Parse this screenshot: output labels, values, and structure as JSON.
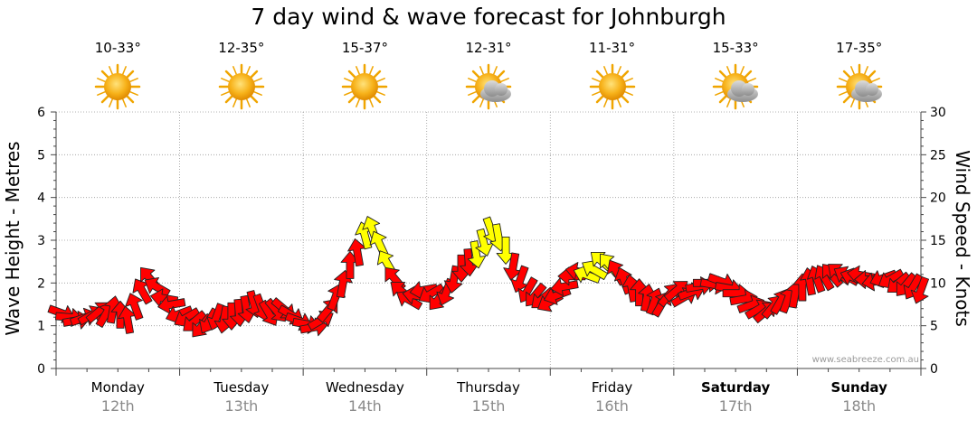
{
  "title": "7 day wind & wave forecast for Johnburgh",
  "days": [
    {
      "name": "Monday",
      "date": "12th",
      "temp": "10-33°",
      "weather_icon": "sun-icon",
      "bold": false
    },
    {
      "name": "Tuesday",
      "date": "13th",
      "temp": "12-35°",
      "weather_icon": "sun-icon",
      "bold": false
    },
    {
      "name": "Wednesday",
      "date": "14th",
      "temp": "15-37°",
      "weather_icon": "sun-icon",
      "bold": false
    },
    {
      "name": "Thursday",
      "date": "15th",
      "temp": "12-31°",
      "weather_icon": "sun-cloud-icon",
      "bold": false
    },
    {
      "name": "Friday",
      "date": "16th",
      "temp": "11-31°",
      "weather_icon": "sun-icon",
      "bold": false
    },
    {
      "name": "Saturday",
      "date": "17th",
      "temp": "15-33°",
      "weather_icon": "sun-cloud-icon",
      "bold": true
    },
    {
      "name": "Sunday",
      "date": "18th",
      "temp": "17-35°",
      "weather_icon": "sun-cloud-icon",
      "bold": true
    }
  ],
  "credit": "www.seabreeze.com.au",
  "colors": {
    "strong_wind": "#ff0000",
    "gust_wind": "#ffff00",
    "outline": "#222222",
    "grid": "#9a9a9a"
  },
  "chart_data": {
    "type": "scatter",
    "left_axis": {
      "label": "Wave Height - Metres",
      "ylim": [
        0,
        6
      ],
      "ticks": [
        "0",
        "1",
        "2",
        "3",
        "4",
        "5",
        "6"
      ]
    },
    "right_axis": {
      "label": "Wind Speed - Knots",
      "ylim": [
        0,
        30
      ],
      "ticks": [
        "0",
        "5",
        "10",
        "15",
        "20",
        "25",
        "30"
      ]
    },
    "x_categories": [
      "Monday 12th",
      "Tuesday 13th",
      "Wednesday 14th",
      "Thursday 15th",
      "Friday 16th",
      "Saturday 17th",
      "Sunday 18th"
    ],
    "grid": true,
    "series": [
      {
        "x": [
          0.0,
          0.06,
          0.12,
          0.18,
          0.24,
          0.3,
          0.36,
          0.42,
          0.48,
          0.54,
          0.6,
          0.66,
          0.72,
          0.78,
          0.84,
          0.9,
          0.96,
          1.02,
          1.08,
          1.14,
          1.2,
          1.26,
          1.32,
          1.38,
          1.44,
          1.5,
          1.56,
          1.62,
          1.68,
          1.74,
          1.8,
          1.86,
          1.92,
          1.98,
          2.04,
          2.1,
          2.16,
          2.22,
          2.28,
          2.34,
          2.4,
          2.46,
          2.52,
          2.58,
          2.64,
          2.7,
          2.76,
          2.82,
          2.88,
          2.94,
          3.0,
          3.06,
          3.12,
          3.18,
          3.24,
          3.3,
          3.36,
          3.42,
          3.48,
          3.54,
          3.6,
          3.66,
          3.72,
          3.78,
          3.84,
          3.9,
          3.96,
          4.02,
          4.08,
          4.14,
          4.2,
          4.26,
          4.32,
          4.38,
          4.44,
          4.5,
          4.56,
          4.62,
          4.68,
          4.74,
          4.8,
          4.86,
          4.92,
          4.98,
          5.04,
          5.1,
          5.16,
          5.22,
          5.28,
          5.34,
          5.4,
          5.46,
          5.52,
          5.58,
          5.64,
          5.7,
          5.76,
          5.82,
          5.88,
          5.94,
          6.0,
          6.06,
          6.12,
          6.18,
          6.24,
          6.3,
          6.36,
          6.42,
          6.48,
          6.54,
          6.6,
          6.66,
          6.72,
          6.78,
          6.84,
          6.9,
          6.96
        ],
        "wind_knots": [
          6.5,
          6.0,
          5.6,
          5.9,
          6.2,
          6.6,
          6.3,
          6.8,
          6.2,
          5.6,
          7.2,
          9.0,
          10.5,
          9.5,
          8.2,
          7.5,
          6.4,
          6.0,
          5.5,
          5.0,
          5.6,
          6.1,
          5.8,
          6.2,
          6.6,
          7.0,
          7.6,
          7.2,
          6.5,
          6.8,
          7.0,
          6.3,
          5.6,
          5.2,
          4.8,
          5.6,
          6.8,
          8.3,
          9.8,
          12.0,
          13.5,
          15.5,
          16.2,
          14.5,
          12.3,
          10.5,
          9.0,
          8.0,
          8.5,
          9.2,
          8.8,
          8.2,
          9.0,
          10.5,
          11.8,
          12.5,
          13.4,
          14.8,
          16.2,
          15.4,
          13.9,
          12.0,
          10.5,
          9.2,
          8.6,
          8.2,
          7.8,
          8.6,
          9.6,
          10.8,
          11.3,
          10.9,
          11.5,
          12.5,
          12.1,
          11.2,
          10.2,
          9.3,
          8.8,
          8.2,
          7.8,
          7.5,
          8.6,
          9.1,
          8.3,
          8.9,
          9.6,
          10.0,
          9.8,
          10.2,
          9.4,
          8.8,
          8.1,
          7.4,
          6.9,
          6.6,
          7.2,
          7.8,
          8.0,
          8.6,
          9.4,
          10.1,
          10.4,
          10.6,
          10.9,
          11.1,
          10.8,
          10.6,
          10.9,
          10.4,
          10.2,
          10.6,
          10.5,
          10.0,
          9.8,
          9.6,
          9.2
        ],
        "direction_deg": [
          110,
          95,
          80,
          70,
          60,
          50,
          30,
          10,
          0,
          350,
          340,
          330,
          320,
          300,
          280,
          260,
          250,
          240,
          230,
          220,
          210,
          200,
          190,
          180,
          175,
          170,
          165,
          160,
          150,
          140,
          130,
          120,
          110,
          100,
          80,
          60,
          40,
          20,
          10,
          0,
          350,
          345,
          340,
          335,
          330,
          320,
          310,
          300,
          280,
          260,
          240,
          220,
          200,
          190,
          180,
          175,
          170,
          165,
          160,
          170,
          180,
          190,
          200,
          210,
          220,
          230,
          240,
          250,
          260,
          270,
          280,
          290,
          300,
          310,
          320,
          330,
          340,
          350,
          0,
          10,
          20,
          30,
          40,
          50,
          60,
          70,
          80,
          90,
          100,
          110,
          100,
          90,
          80,
          70,
          60,
          50,
          40,
          30,
          20,
          10,
          0,
          350,
          340,
          330,
          320,
          310,
          300,
          290,
          280,
          270,
          260,
          250,
          240,
          230,
          220,
          210,
          200
        ],
        "gust": [
          false,
          false,
          false,
          false,
          false,
          false,
          false,
          false,
          false,
          false,
          false,
          false,
          false,
          false,
          false,
          false,
          false,
          false,
          false,
          false,
          false,
          false,
          false,
          false,
          false,
          false,
          false,
          false,
          false,
          false,
          false,
          false,
          false,
          false,
          false,
          false,
          false,
          false,
          false,
          false,
          false,
          true,
          true,
          true,
          true,
          false,
          false,
          false,
          false,
          false,
          false,
          false,
          false,
          false,
          false,
          false,
          true,
          true,
          true,
          true,
          true,
          false,
          false,
          false,
          false,
          false,
          false,
          false,
          false,
          false,
          false,
          true,
          true,
          true,
          true,
          false,
          false,
          false,
          false,
          false,
          false,
          false,
          false,
          false,
          false,
          false,
          false,
          false,
          false,
          false,
          false,
          false,
          false,
          false,
          false,
          false,
          false,
          false,
          false,
          false,
          false,
          false,
          false,
          false,
          false,
          false,
          false,
          false,
          false,
          false,
          false,
          false,
          false,
          false,
          false,
          false,
          false
        ]
      }
    ]
  }
}
